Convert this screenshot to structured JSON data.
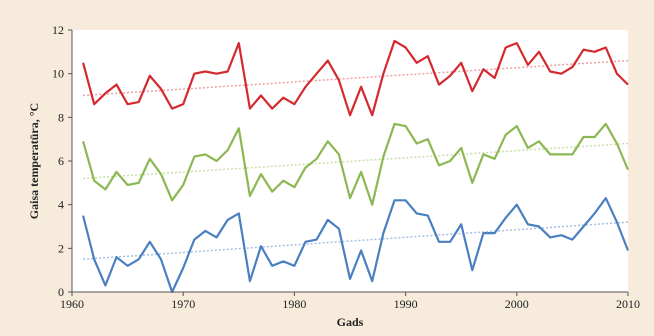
{
  "chart_data": {
    "type": "line",
    "xlabel": "Gads",
    "ylabel": "Gaisa temperatūra, °C",
    "xlim": [
      1960,
      2010
    ],
    "ylim": [
      0,
      12
    ],
    "x_ticks": [
      1960,
      1970,
      1980,
      1990,
      2000,
      2010
    ],
    "y_ticks": [
      0,
      2,
      4,
      6,
      8,
      10,
      12
    ],
    "grid": false,
    "legend": "none",
    "x": [
      1961,
      1962,
      1963,
      1964,
      1965,
      1966,
      1967,
      1968,
      1969,
      1970,
      1971,
      1972,
      1973,
      1974,
      1975,
      1976,
      1977,
      1978,
      1979,
      1980,
      1981,
      1982,
      1983,
      1984,
      1985,
      1986,
      1987,
      1988,
      1989,
      1990,
      1991,
      1992,
      1993,
      1994,
      1995,
      1996,
      1997,
      1998,
      1999,
      2000,
      2001,
      2002,
      2003,
      2004,
      2005,
      2006,
      2007,
      2008,
      2009,
      2010
    ],
    "series": [
      {
        "color": "#d42a2e",
        "trend_color": "#f0a0a4",
        "values": [
          10.5,
          8.6,
          9.1,
          9.5,
          8.6,
          8.7,
          9.9,
          9.3,
          8.4,
          8.6,
          10.0,
          10.1,
          10.0,
          10.1,
          11.4,
          8.4,
          9.0,
          8.4,
          8.9,
          8.6,
          9.4,
          10.0,
          10.6,
          9.7,
          8.1,
          9.4,
          8.1,
          10.0,
          11.5,
          11.2,
          10.5,
          10.8,
          9.5,
          9.9,
          10.5,
          9.2,
          10.2,
          9.8,
          11.2,
          11.4,
          10.4,
          11.0,
          10.1,
          10.0,
          10.3,
          11.1,
          11.0,
          11.2,
          10.0,
          9.5
        ],
        "trend": [
          9.0,
          10.6
        ]
      },
      {
        "color": "#8bb852",
        "trend_color": "#c9e0a8",
        "values": [
          6.9,
          5.1,
          4.7,
          5.5,
          4.9,
          5.0,
          6.1,
          5.4,
          4.2,
          4.9,
          6.2,
          6.3,
          6.0,
          6.5,
          7.5,
          4.4,
          5.4,
          4.6,
          5.1,
          4.8,
          5.7,
          6.1,
          6.9,
          6.3,
          4.3,
          5.5,
          4.0,
          6.2,
          7.7,
          7.6,
          6.8,
          7.0,
          5.8,
          6.0,
          6.6,
          5.0,
          6.3,
          6.1,
          7.2,
          7.6,
          6.6,
          6.9,
          6.3,
          6.3,
          6.3,
          7.1,
          7.1,
          7.7,
          6.8,
          5.6
        ],
        "trend": [
          5.2,
          6.8
        ]
      },
      {
        "color": "#4a7fc0",
        "trend_color": "#a6c1e4",
        "values": [
          3.5,
          1.5,
          0.3,
          1.6,
          1.2,
          1.5,
          2.3,
          1.5,
          0.0,
          1.1,
          2.4,
          2.8,
          2.5,
          3.3,
          3.6,
          0.5,
          2.1,
          1.2,
          1.4,
          1.2,
          2.3,
          2.4,
          3.3,
          2.9,
          0.6,
          1.9,
          0.5,
          2.7,
          4.2,
          4.2,
          3.6,
          3.5,
          2.3,
          2.3,
          3.1,
          1.0,
          2.7,
          2.7,
          3.4,
          4.0,
          3.1,
          3.0,
          2.5,
          2.6,
          2.4,
          3.0,
          3.6,
          4.3,
          3.2,
          1.9
        ],
        "trend": [
          1.5,
          3.2
        ]
      }
    ]
  }
}
